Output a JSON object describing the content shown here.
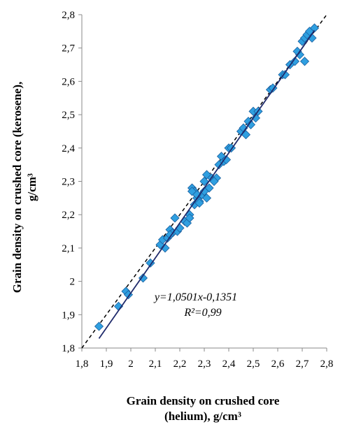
{
  "chart_data": {
    "type": "scatter",
    "xlabel_line1": "Grain density on crushed core",
    "xlabel_line2": "(helium), g/cm³",
    "ylabel_line1": "Grain density on crushed core (kerosene),",
    "ylabel_line2": "g/cm³",
    "xlim": [
      1.8,
      2.8
    ],
    "ylim": [
      1.8,
      2.8
    ],
    "xticks": [
      "1,8",
      "1,9",
      "2",
      "2,1",
      "2,2",
      "2,3",
      "2,4",
      "2,5",
      "2,6",
      "2,7",
      "2,8"
    ],
    "yticks": [
      "1,8",
      "1,9",
      "2",
      "2,1",
      "2,2",
      "2,3",
      "2,4",
      "2,5",
      "2,6",
      "2,7",
      "2,8"
    ],
    "grid": false,
    "legend": "none",
    "equation": "y=1,0501x-0,1351",
    "r_squared": "R²=0,99",
    "trendline": {
      "slope": 1.0501,
      "intercept": -0.1351,
      "x_range": [
        1.87,
        2.75
      ],
      "color": "#1f2a6b"
    },
    "reference_line": {
      "description": "y = x",
      "style": "dashed",
      "color": "#000000"
    },
    "marker_color": "#2f9fe0",
    "marker_edge_color": "#1a5f9e",
    "points": {
      "x": [
        1.87,
        1.95,
        1.98,
        1.99,
        2.05,
        2.08,
        2.12,
        2.13,
        2.14,
        2.15,
        2.16,
        2.17,
        2.18,
        2.19,
        2.2,
        2.22,
        2.23,
        2.24,
        2.25,
        2.26,
        2.26,
        2.27,
        2.28,
        2.29,
        2.3,
        2.31,
        2.31,
        2.32,
        2.33,
        2.35,
        2.36,
        2.37,
        2.38,
        2.39,
        2.4,
        2.41,
        2.45,
        2.46,
        2.47,
        2.48,
        2.49,
        2.5,
        2.51,
        2.52,
        2.57,
        2.58,
        2.62,
        2.63,
        2.65,
        2.67,
        2.69,
        2.7,
        2.71,
        2.72,
        2.73,
        2.74,
        2.75,
        2.71,
        2.68,
        2.25,
        2.27,
        2.28,
        2.3,
        2.34,
        2.16,
        2.24
      ],
      "y": [
        1.865,
        1.925,
        1.97,
        1.96,
        2.01,
        2.055,
        2.11,
        2.125,
        2.1,
        2.13,
        2.155,
        2.145,
        2.19,
        2.15,
        2.16,
        2.18,
        2.175,
        2.2,
        2.28,
        2.27,
        2.23,
        2.25,
        2.24,
        2.26,
        2.3,
        2.25,
        2.32,
        2.28,
        2.31,
        2.31,
        2.35,
        2.375,
        2.36,
        2.365,
        2.4,
        2.4,
        2.45,
        2.46,
        2.44,
        2.48,
        2.47,
        2.51,
        2.49,
        2.51,
        2.575,
        2.58,
        2.62,
        2.62,
        2.65,
        2.66,
        2.68,
        2.72,
        2.73,
        2.74,
        2.75,
        2.73,
        2.76,
        2.66,
        2.69,
        2.27,
        2.26,
        2.235,
        2.27,
        2.3,
        2.14,
        2.19
      ]
    }
  }
}
